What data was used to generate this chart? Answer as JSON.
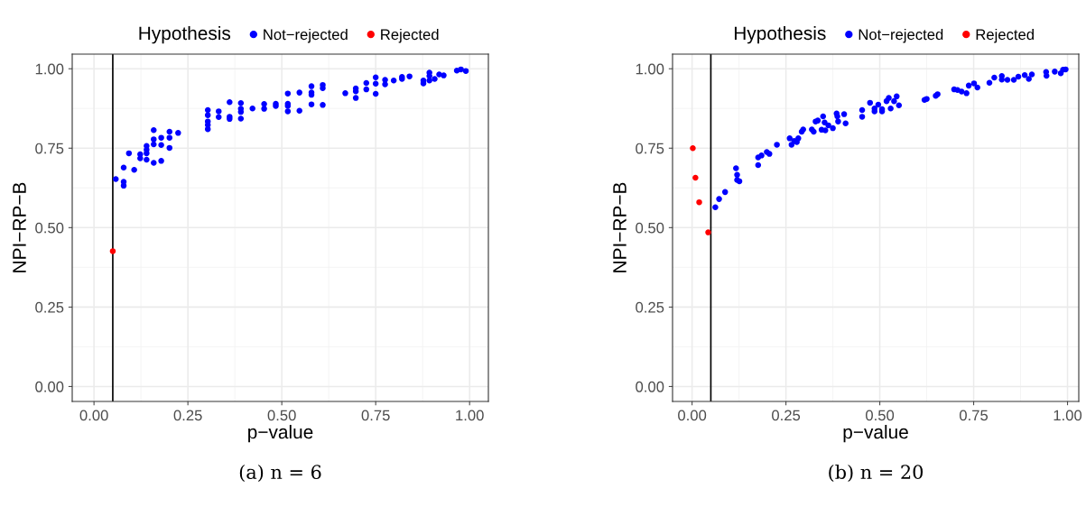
{
  "chart_data": [
    {
      "type": "scatter",
      "xlabel": "p−value",
      "ylabel": "NPI−RP−B",
      "legend_title": "Hypothesis",
      "legend": "top",
      "grid": true,
      "marker": "circle",
      "xlim": [
        -0.058,
        1.05
      ],
      "ylim": [
        -0.047,
        1.046
      ],
      "xticks": [
        {
          "value": 0,
          "label": "0.00"
        },
        {
          "value": 0.25,
          "label": "0.25"
        },
        {
          "value": 0.5,
          "label": "0.50"
        },
        {
          "value": 0.75,
          "label": "0.75"
        },
        {
          "value": 1,
          "label": "1.00"
        }
      ],
      "yticks": [
        {
          "value": 0,
          "label": "0.00"
        },
        {
          "value": 0.25,
          "label": "0.25"
        },
        {
          "value": 0.5,
          "label": "0.50"
        },
        {
          "value": 0.75,
          "label": "0.75"
        },
        {
          "value": 1,
          "label": "1.00"
        }
      ],
      "ref_lines": [
        {
          "axis": "x",
          "value": 0.05,
          "color": "#000000"
        }
      ],
      "annotations": [
        "(a) n = 6"
      ],
      "series": [
        {
          "name": "Not−rejected",
          "color": "#0000ff",
          "x": [
            0.058,
            0.079,
            0.079,
            0.079,
            0.093,
            0.107,
            0.123,
            0.123,
            0.14,
            0.14,
            0.14,
            0.14,
            0.159,
            0.159,
            0.159,
            0.159,
            0.179,
            0.179,
            0.179,
            0.201,
            0.201,
            0.201,
            0.224,
            0.303,
            0.303,
            0.303,
            0.303,
            0.303,
            0.332,
            0.332,
            0.361,
            0.361,
            0.361,
            0.391,
            0.391,
            0.391,
            0.391,
            0.422,
            0.453,
            0.453,
            0.484,
            0.484,
            0.516,
            0.516,
            0.516,
            0.516,
            0.547,
            0.547,
            0.579,
            0.579,
            0.579,
            0.579,
            0.609,
            0.609,
            0.609,
            0.669,
            0.697,
            0.697,
            0.697,
            0.725,
            0.725,
            0.75,
            0.75,
            0.75,
            0.775,
            0.775,
            0.798,
            0.82,
            0.82,
            0.84,
            0.877,
            0.877,
            0.893,
            0.893,
            0.893,
            0.907,
            0.919,
            0.931,
            0.966,
            0.977,
            0.99
          ],
          "values": [
            0.653,
            0.644,
            0.632,
            0.689,
            0.734,
            0.682,
            0.731,
            0.718,
            0.757,
            0.745,
            0.734,
            0.714,
            0.807,
            0.778,
            0.762,
            0.704,
            0.783,
            0.76,
            0.71,
            0.802,
            0.783,
            0.751,
            0.798,
            0.87,
            0.854,
            0.834,
            0.823,
            0.81,
            0.866,
            0.848,
            0.895,
            0.849,
            0.842,
            0.892,
            0.874,
            0.864,
            0.843,
            0.875,
            0.889,
            0.874,
            0.89,
            0.883,
            0.922,
            0.89,
            0.883,
            0.866,
            0.925,
            0.868,
            0.945,
            0.925,
            0.918,
            0.888,
            0.949,
            0.939,
            0.886,
            0.923,
            0.938,
            0.929,
            0.908,
            0.955,
            0.935,
            0.973,
            0.953,
            0.921,
            0.965,
            0.951,
            0.963,
            0.974,
            0.968,
            0.976,
            0.963,
            0.954,
            0.988,
            0.977,
            0.963,
            0.968,
            0.982,
            0.979,
            0.994,
            0.998,
            0.993
          ]
        },
        {
          "name": "Rejected",
          "color": "#ff0000",
          "x": [
            0.05
          ],
          "values": [
            0.426
          ]
        }
      ]
    },
    {
      "type": "scatter",
      "xlabel": "p−value",
      "ylabel": "NPI−RP−B",
      "legend_title": "Hypothesis",
      "legend": "top",
      "grid": true,
      "marker": "circle",
      "xlim": [
        -0.052,
        1.03
      ],
      "ylim": [
        -0.047,
        1.046
      ],
      "xticks": [
        {
          "value": 0,
          "label": "0.00"
        },
        {
          "value": 0.25,
          "label": "0.25"
        },
        {
          "value": 0.5,
          "label": "0.50"
        },
        {
          "value": 0.75,
          "label": "0.75"
        },
        {
          "value": 1,
          "label": "1.00"
        }
      ],
      "yticks": [
        {
          "value": 0,
          "label": "0.00"
        },
        {
          "value": 0.25,
          "label": "0.25"
        },
        {
          "value": 0.5,
          "label": "0.50"
        },
        {
          "value": 0.75,
          "label": "0.75"
        },
        {
          "value": 1,
          "label": "1.00"
        }
      ],
      "ref_lines": [
        {
          "axis": "x",
          "value": 0.05,
          "color": "#000000"
        }
      ],
      "annotations": [
        "(b) n = 20"
      ],
      "series": [
        {
          "name": "Not−rejected",
          "color": "#0000ff",
          "x": [
            0.062,
            0.072,
            0.088,
            0.117,
            0.12,
            0.12,
            0.126,
            0.176,
            0.176,
            0.185,
            0.199,
            0.206,
            0.226,
            0.26,
            0.265,
            0.272,
            0.279,
            0.283,
            0.292,
            0.296,
            0.319,
            0.324,
            0.329,
            0.335,
            0.345,
            0.349,
            0.353,
            0.355,
            0.363,
            0.375,
            0.385,
            0.387,
            0.389,
            0.405,
            0.409,
            0.453,
            0.453,
            0.474,
            0.486,
            0.486,
            0.496,
            0.506,
            0.506,
            0.518,
            0.524,
            0.529,
            0.538,
            0.545,
            0.551,
            0.619,
            0.625,
            0.649,
            0.654,
            0.698,
            0.707,
            0.718,
            0.731,
            0.737,
            0.751,
            0.76,
            0.792,
            0.805,
            0.825,
            0.825,
            0.84,
            0.857,
            0.869,
            0.886,
            0.897,
            0.905,
            0.943,
            0.944,
            0.966,
            0.982,
            0.988,
            0.995
          ],
          "values": [
            0.564,
            0.59,
            0.612,
            0.687,
            0.666,
            0.65,
            0.646,
            0.721,
            0.697,
            0.727,
            0.738,
            0.732,
            0.761,
            0.781,
            0.761,
            0.773,
            0.769,
            0.781,
            0.802,
            0.809,
            0.809,
            0.802,
            0.834,
            0.837,
            0.808,
            0.85,
            0.831,
            0.806,
            0.822,
            0.813,
            0.859,
            0.85,
            0.834,
            0.857,
            0.828,
            0.87,
            0.849,
            0.893,
            0.875,
            0.866,
            0.887,
            0.873,
            0.866,
            0.898,
            0.908,
            0.875,
            0.898,
            0.913,
            0.885,
            0.902,
            0.905,
            0.915,
            0.92,
            0.935,
            0.933,
            0.928,
            0.923,
            0.947,
            0.954,
            0.941,
            0.956,
            0.972,
            0.977,
            0.966,
            0.965,
            0.965,
            0.975,
            0.98,
            0.968,
            0.982,
            0.99,
            0.978,
            0.991,
            0.986,
            0.997,
            0.998
          ]
        },
        {
          "name": "Rejected",
          "color": "#ff0000",
          "x": [
            0.002,
            0.009,
            0.019,
            0.043
          ],
          "values": [
            0.75,
            0.657,
            0.58,
            0.485
          ]
        }
      ]
    }
  ]
}
